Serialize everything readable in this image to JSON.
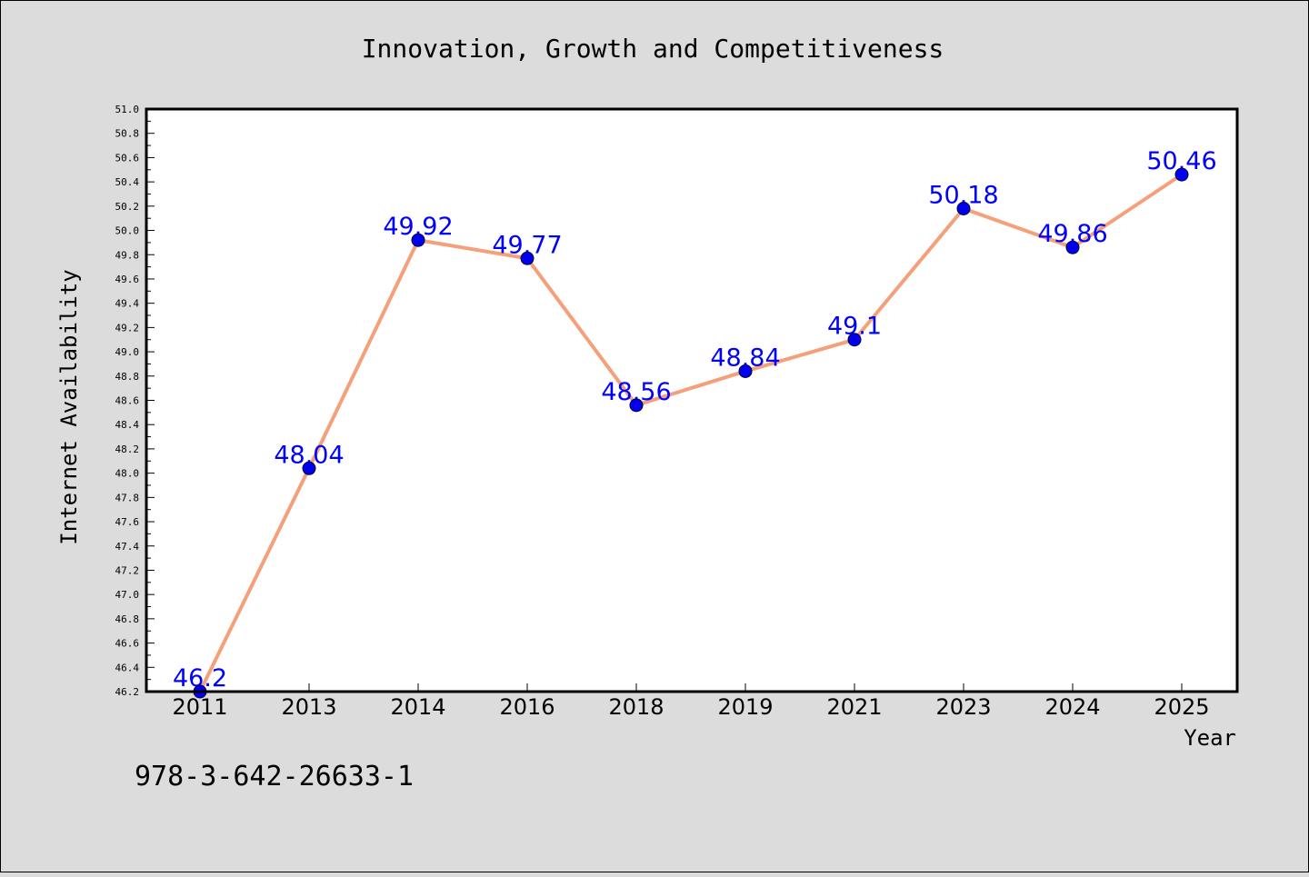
{
  "chart_data": {
    "type": "line",
    "title": "Innovation, Growth and Competitiveness",
    "xlabel": "Year",
    "ylabel": "Internet Availability",
    "categories": [
      "2011",
      "2013",
      "2014",
      "2016",
      "2018",
      "2019",
      "2021",
      "2023",
      "2024",
      "2025"
    ],
    "values": [
      46.2,
      48.04,
      49.92,
      49.77,
      48.56,
      48.84,
      49.1,
      50.18,
      49.86,
      50.46
    ],
    "data_labels": [
      "46.2",
      "48.04",
      "49.92",
      "49.77",
      "48.56",
      "48.84",
      "49.1",
      "50.18",
      "49.86",
      "50.46"
    ],
    "ylim": [
      46.2,
      51.0
    ],
    "yticks": [
      "46.2",
      "46.4",
      "46.6",
      "46.8",
      "47.0",
      "47.2",
      "47.4",
      "47.6",
      "47.8",
      "48.0",
      "48.2",
      "48.4",
      "48.6",
      "48.8",
      "49.0",
      "49.2",
      "49.4",
      "49.6",
      "49.8",
      "50.0",
      "50.2",
      "50.4",
      "50.6",
      "50.8",
      "51.0"
    ],
    "grid": false,
    "line_color": "#f4a07a",
    "marker_color": "#0000ee",
    "label_color": "#0000ff"
  },
  "annotation": "978-3-642-26633-1"
}
